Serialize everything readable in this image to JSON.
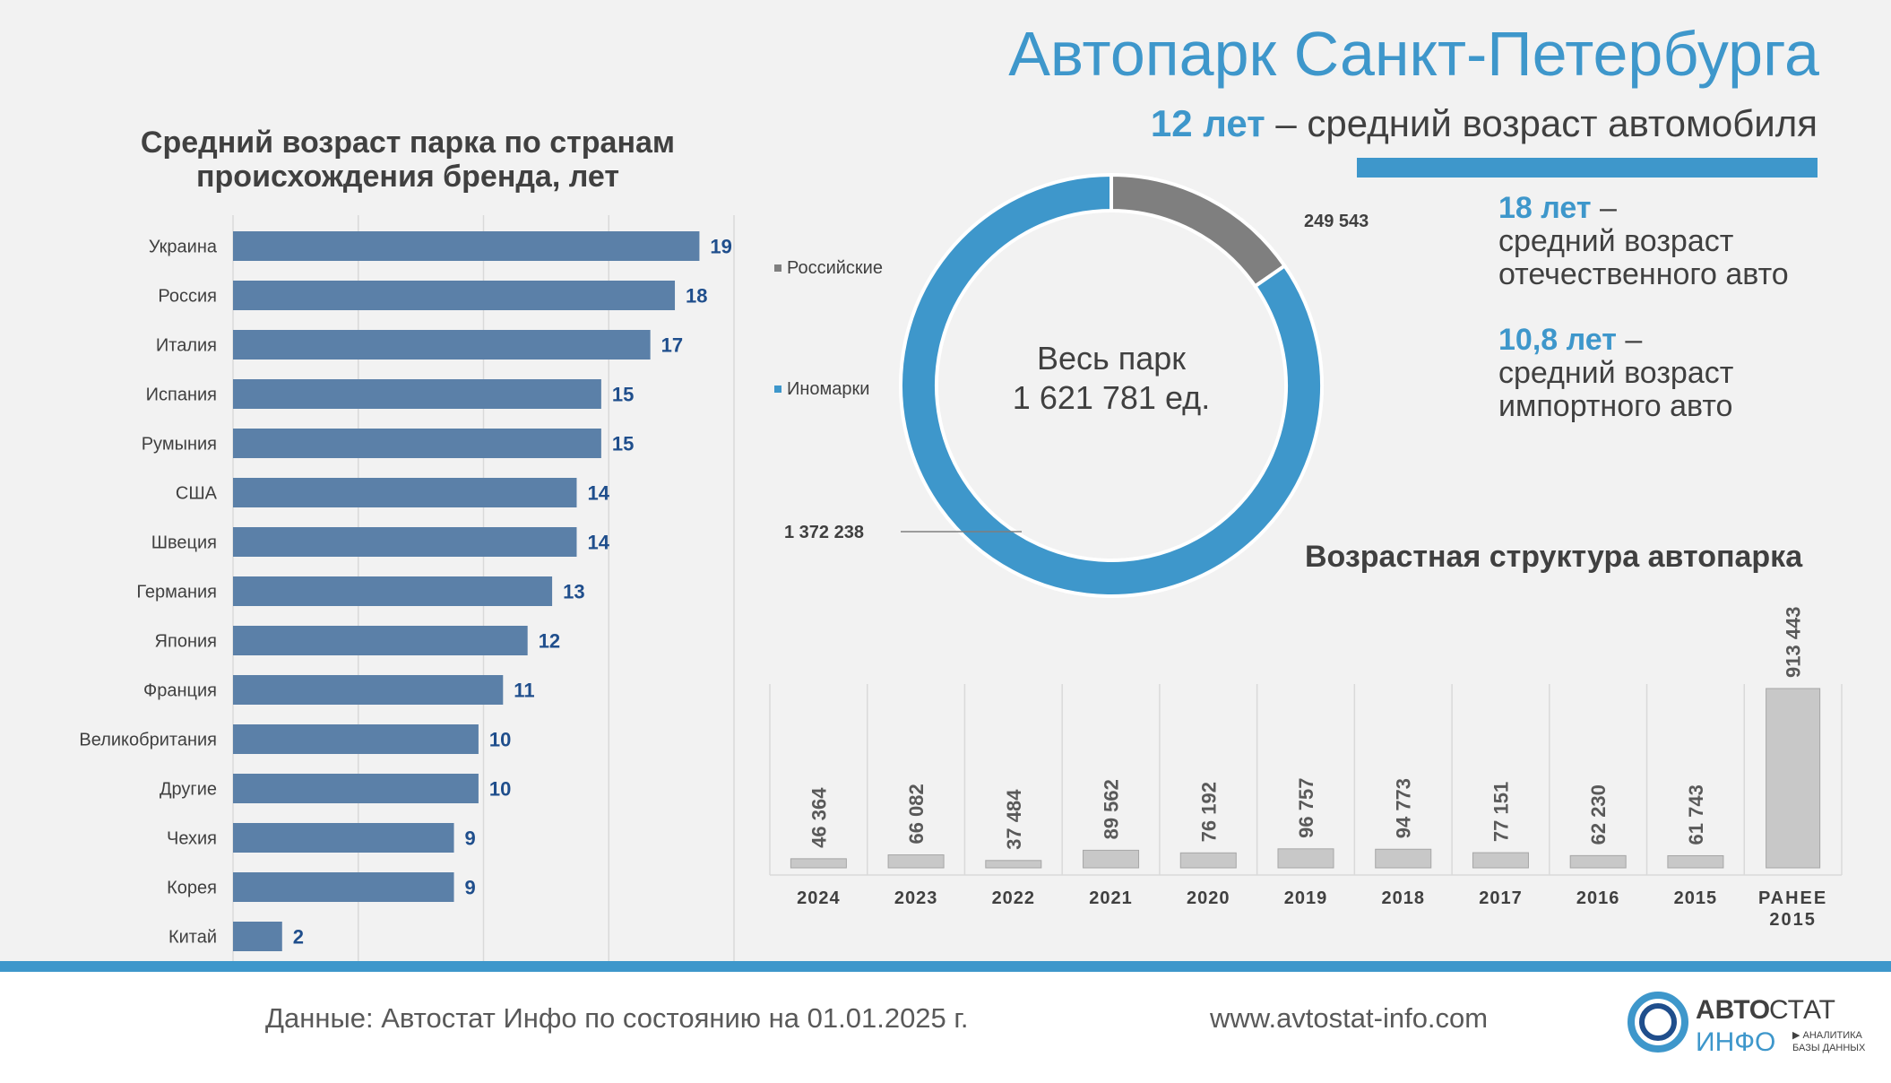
{
  "header": {
    "title": "Автопарк Санкт-Петербурга",
    "avg_age_value": "12 лет",
    "avg_age_text": "– средний возраст автомобиля"
  },
  "stats": {
    "domestic_value": "18 лет",
    "domestic_dash": "–",
    "domestic_line1": "средний возраст",
    "domestic_line2": "отечественного авто",
    "import_value": "10,8 лет",
    "import_dash": "–",
    "import_line1": "средний возраст",
    "import_line2": "импортного авто"
  },
  "donut_center": {
    "line1": "Весь парк",
    "line2": "1 621 781 ед."
  },
  "footer": {
    "source": "Данные: Автостат Инфо по состоянию на 01.01.2025 г.",
    "url": "www.avtostat-info.com",
    "logo_word1_a": "АВТО",
    "logo_word1_b": "СТАТ",
    "logo_word2": "ИНФО",
    "logo_tag1": "▶ АНАЛИТИКА",
    "logo_tag2": "БАЗЫ ДАННЫХ"
  },
  "colors": {
    "accent": "#3e97cb",
    "bar_blue": "#5b80a8",
    "value_blue": "#1f4e8c",
    "russian_gray": "#7f7f7f",
    "year_bar": "#c8c8c8",
    "text_dark": "#404040"
  },
  "chart_data": [
    {
      "type": "bar",
      "orientation": "horizontal",
      "title": "Средний возраст парка по странам происхождения бренда, лет",
      "categories": [
        "Украина",
        "Россия",
        "Италия",
        "Испания",
        "Румыния",
        "США",
        "Швеция",
        "Германия",
        "Япония",
        "Франция",
        "Великобритания",
        "Другие",
        "Чехия",
        "Корея",
        "Китай"
      ],
      "values": [
        19,
        18,
        17,
        15,
        15,
        14,
        14,
        13,
        12,
        11,
        10,
        10,
        9,
        9,
        2
      ],
      "label_values": [
        "19",
        "18",
        "17",
        "15",
        "15",
        "14",
        "14",
        "13",
        "12",
        "11",
        "10",
        "10",
        "9",
        "9",
        "2"
      ],
      "xlim": [
        0,
        20
      ],
      "grid": true
    },
    {
      "type": "pie",
      "variant": "donut",
      "categories": [
        "Российские",
        "Иномарки"
      ],
      "values": [
        249543,
        1372238
      ],
      "labels": [
        "249 543",
        "1 372 238"
      ],
      "legend": "left"
    },
    {
      "type": "bar",
      "title": "Возрастная структура автопарка",
      "categories": [
        "2024",
        "2023",
        "2022",
        "2021",
        "2020",
        "2019",
        "2018",
        "2017",
        "2016",
        "2015",
        "РАНЕЕ 2015"
      ],
      "values": [
        46364,
        66082,
        37484,
        89562,
        76192,
        96757,
        94773,
        77151,
        62230,
        61743,
        913443
      ],
      "labels": [
        "46 364",
        "66 082",
        "37 484",
        "89 562",
        "76 192",
        "96 757",
        "94 773",
        "77 151",
        "62 230",
        "61 743",
        "913 443"
      ],
      "grid": true
    }
  ]
}
